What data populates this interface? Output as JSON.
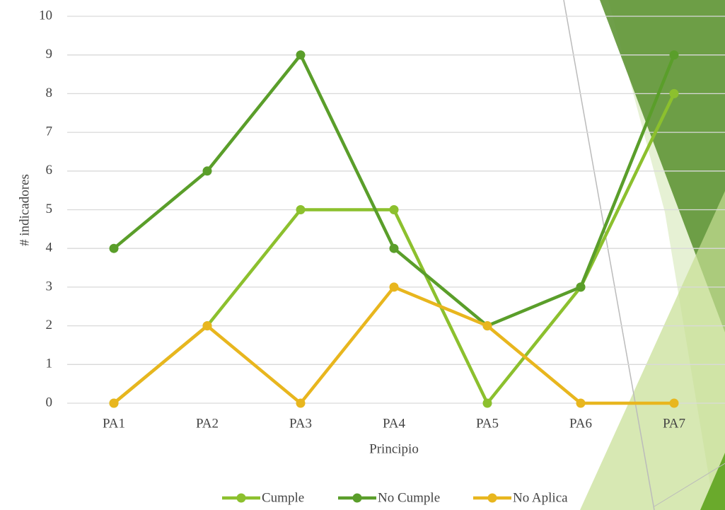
{
  "chart_data": {
    "type": "line",
    "x_label": "Principio",
    "y_label": "# indicadores",
    "categories": [
      "PA1",
      "PA2",
      "PA3",
      "PA4",
      "PA5",
      "PA6",
      "PA7"
    ],
    "series": [
      {
        "name": "Cumple",
        "color": "#8cc02e",
        "values": [
          0,
          2,
          5,
          5,
          0,
          3,
          8
        ]
      },
      {
        "name": "No Cumple",
        "color": "#5a9e2a",
        "values": [
          4,
          6,
          9,
          4,
          2,
          3,
          9
        ]
      },
      {
        "name": "No Aplica",
        "color": "#e8b61e",
        "values": [
          0,
          2,
          0,
          3,
          2,
          0,
          0
        ]
      }
    ],
    "ylim": [
      0,
      10
    ],
    "yticks": [
      0,
      1,
      2,
      3,
      4,
      5,
      6,
      7,
      8,
      9,
      10
    ],
    "grid": true,
    "legend": "bottom"
  }
}
